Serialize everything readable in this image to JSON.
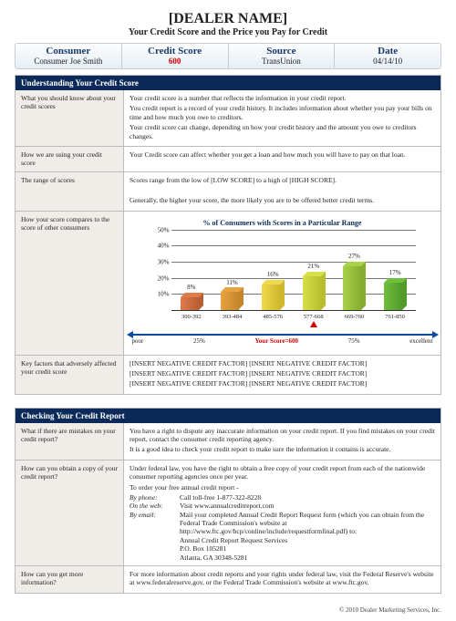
{
  "header": {
    "title": "[DEALER NAME]",
    "subtitle": "Your Credit Score and the Price you Pay for Credit",
    "cols": [
      {
        "label": "Consumer",
        "value": "Consumer Joe Smith"
      },
      {
        "label": "Credit Score",
        "value": "600",
        "red": true
      },
      {
        "label": "Source",
        "value": "TransUnion"
      },
      {
        "label": "Date",
        "value": "04/14/10"
      }
    ]
  },
  "section1": {
    "title": "Understanding Your Credit Score",
    "rows": [
      {
        "label": "What you should know about your credit scores",
        "body": [
          "Your credit score is a number that reflects the information in your credit report.",
          "You credit report is a record of your credit history.  It includes information about whether you pay your bills on time and how much you owe to creditors.",
          "Your credit score can change, depending on how your credit history and the amount you owe to creditors changes."
        ]
      },
      {
        "label": "How we are using your credit score",
        "body": [
          "Your Credit score can affect whether you get a loan and how much you will have to pay on that loan."
        ]
      },
      {
        "label": "The range of scores",
        "body": [
          "Scores range from the low of [LOW SCORE] to a high of [HIGH SCORE].",
          "",
          "Generally, the higher your score, the more likely you are to be offered better credit terms."
        ]
      }
    ],
    "chart_row_label": "How your score compares to the score of other consumers",
    "chart": {
      "title": "% of Consumers with Scores in a Particular Range",
      "ylim": [
        0,
        50
      ],
      "ytick_step": 10,
      "categories": [
        "300-392",
        "393-484",
        "485-576",
        "577-668",
        "669-760",
        "761-850"
      ],
      "values": [
        8,
        11,
        16,
        21,
        27,
        17
      ],
      "bar_colors": [
        "#e07b4a",
        "#e8a23f",
        "#f0d94a",
        "#d7e04a",
        "#a8d24a",
        "#6fbf3f"
      ],
      "bar_dark": [
        "#b85e34",
        "#c6852c",
        "#d0b82e",
        "#b6be2e",
        "#86ad2f",
        "#529a2a"
      ],
      "marker_category_index": 3,
      "marker_label": "Your Score=600",
      "scale_left": "poor",
      "scale_25": "25%",
      "scale_75": "75%",
      "scale_right": "excellent"
    },
    "factors_row": {
      "label": "Key factors that adversely affected your credit score",
      "body": [
        "[INSERT NEGATIVE CREDIT FACTOR] [INSERT NEGATIVE CREDIT FACTOR]",
        "[INSERT NEGATIVE CREDIT FACTOR] [INSERT NEGATIVE CREDIT FACTOR]",
        "[INSERT NEGATIVE CREDIT FACTOR] [INSERT NEGATIVE CREDIT FACTOR]"
      ]
    }
  },
  "section2": {
    "title": "Checking Your Credit Report",
    "rows": [
      {
        "label": "What if there are mistakes on your credit report?",
        "body": [
          "You have a right to dispute any inaccurate information on your credit report.  If you find mistakes on your credit report, contact the consumer credit reporting agency.",
          "It is a good idea to check your credit report to make sure the information it contains is accurate."
        ]
      }
    ],
    "copy_row": {
      "label": "How can you obtain a copy of your credit report?",
      "intro1": "Under federal law, you have the right to obtain a free copy of your credit report from each of the nationwide consumer reporting agencies once per year.",
      "intro2": "To order your free annual credit report -",
      "phone_k": "By phone:",
      "phone_v": "Call toll-free 1-877-322-8228",
      "web_k": "On the web:",
      "web_v": "Visit www.annualcreditreport.com",
      "mail_k": "By email:",
      "mail_v1": "Mail your completed Annual Credit Report Request form (which you can obtain from the Federal Trade Commission's website at http://www.ftc.gov/bcp/conline/include/requestformfinal.pdf) to:",
      "mail_v2": "Annual Credit Report Request Services",
      "mail_v3": "P.O. Box 105281",
      "mail_v4": "Atlanta, GA 30348-5281"
    },
    "more_row": {
      "label": "How can you get more information?",
      "body": [
        "For more information about credit reports and your rights under federal law, visit the Federal Reserve's website at www.federalreserve.gov, or the Federal Trade Commission's website at www.ftc.gov."
      ]
    }
  },
  "copyright": "© 2010 Dealer Marketing Services, Inc."
}
